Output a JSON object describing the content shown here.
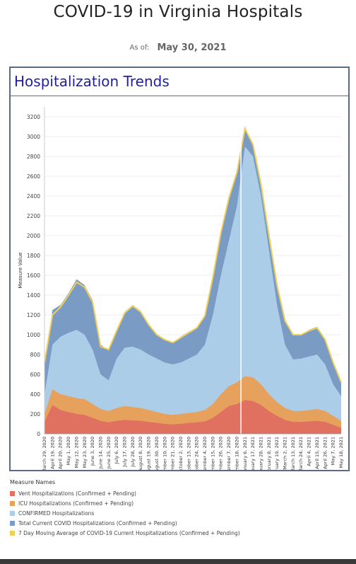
{
  "header": {
    "title": "COVID-19 in Virginia Hospitals",
    "as_of_label": "As of:",
    "as_of_date": "May 30, 2021"
  },
  "panel": {
    "title": "Hospitalization Trends"
  },
  "legend": {
    "title": "Measure Names",
    "items": [
      {
        "label": "Vent Hospitalizations (Confirmed + Pending)",
        "color": "#e07060"
      },
      {
        "label": "ICU Hospitalizations (Confirmed + Pending)",
        "color": "#e6a15c"
      },
      {
        "label": "CONFIRMED Hospitalizations",
        "color": "#abcde8"
      },
      {
        "label": "Total Current COVID Hospitalizations (Confirmed + Pending)",
        "color": "#7a9bc4"
      },
      {
        "label": "7 Day Moving Average of COVID-19 Current Hospitalizations (Confirmed + Pending)",
        "color": "#f0cf5a"
      }
    ]
  },
  "chart_data": {
    "type": "area",
    "ylabel": "Measure Value",
    "ylim": [
      0,
      3300
    ],
    "yticks": [
      0,
      200,
      400,
      600,
      800,
      1000,
      1200,
      1400,
      1600,
      1800,
      2000,
      2200,
      2400,
      2600,
      2800,
      3000,
      3200
    ],
    "x": [
      "March 29, 2020",
      "April 19, 2020",
      "April 20, 2020",
      "May 1, 2020",
      "May 12, 2020",
      "May 23, 2020",
      "June 3, 2020",
      "June 14, 2020",
      "June 25, 2020",
      "July 6, 2020",
      "July 17, 2020",
      "July 28, 2020",
      "August 8, 2020",
      "August 19, 2020",
      "August 30, 2020",
      "September 10, 2020",
      "September 21, 2020",
      "October 2, 2020",
      "October 13, 2020",
      "October 24, 2020",
      "November 4, 2020",
      "November 15, 2020",
      "November 26, 2020",
      "December 7, 2020",
      "December 18, 2020",
      "January 6, 2021",
      "January 17, 2021",
      "January 28, 2021",
      "February 8, 2021",
      "February 19, 2021",
      "March 2, 2021",
      "March 13, 2021",
      "March 24, 2021",
      "April 4, 2021",
      "April 15, 2021",
      "April 26, 2021",
      "May 7, 2021",
      "May 18, 2021"
    ],
    "x_ticks_shown": [
      "March 29, 2020",
      "April 19, 2020",
      "April 20, 2020",
      "May 1, 2020",
      "May 12, 2020",
      "May 23, 2020",
      "June 3, 2020",
      "June 14, 2020",
      "June 25, 2020",
      "July 6, 2020",
      "July 17, 2020",
      "July 28, 2020",
      "August 8, 2020",
      "August 19, 2020",
      "August 30, 2020",
      "September 10, 2020",
      "September 21, 2020",
      "October 2, 2020",
      "October 13, 2020",
      "October 24, 2020",
      "November 4, 2020",
      "November 15, 2020",
      "November 26, 2020",
      "December 7, 2020",
      "December 18, 2020",
      "January 6, 2021",
      "January 17, 2021",
      "January 28, 2021",
      "February 8, 2021",
      "February 19, 2021",
      "March 2, 2021",
      "March 13, 2021",
      "March 24, 2021",
      "April 4, 2021",
      "April 15, 2021",
      "April 26, 2021",
      "May 7, 2021",
      "May 18, 2021"
    ],
    "series": [
      {
        "name": "Total Current COVID Hospitalizations (Confirmed + Pending)",
        "values": [
          700,
          1250,
          1300,
          1420,
          1560,
          1500,
          1350,
          900,
          840,
          1050,
          1230,
          1300,
          1240,
          1100,
          1000,
          950,
          920,
          980,
          1030,
          1070,
          1200,
          1600,
          2050,
          2400,
          2650,
          3100,
          2900,
          2500,
          2000,
          1500,
          1150,
          1000,
          1000,
          1050,
          1080,
          950,
          700,
          520
        ]
      },
      {
        "name": "CONFIRMED Hospitalizations",
        "values": [
          400,
          900,
          980,
          1020,
          1050,
          1000,
          850,
          600,
          540,
          760,
          870,
          880,
          850,
          800,
          760,
          720,
          700,
          720,
          760,
          800,
          900,
          1200,
          1600,
          1950,
          2300,
          2900,
          2800,
          2400,
          1850,
          1300,
          900,
          750,
          760,
          780,
          800,
          700,
          500,
          380
        ]
      },
      {
        "name": "ICU Hospitalizations (Confirmed + Pending)",
        "values": [
          200,
          450,
          400,
          380,
          360,
          350,
          300,
          250,
          230,
          260,
          280,
          270,
          260,
          240,
          220,
          200,
          190,
          200,
          210,
          220,
          240,
          300,
          400,
          480,
          520,
          580,
          570,
          500,
          400,
          320,
          260,
          230,
          230,
          240,
          250,
          230,
          180,
          130
        ]
      },
      {
        "name": "Vent Hospitalizations (Confirmed + Pending)",
        "values": [
          120,
          290,
          240,
          220,
          200,
          190,
          160,
          130,
          115,
          130,
          140,
          135,
          130,
          120,
          110,
          100,
          95,
          100,
          110,
          115,
          125,
          160,
          220,
          280,
          300,
          340,
          330,
          290,
          230,
          180,
          140,
          120,
          120,
          125,
          130,
          120,
          90,
          60
        ]
      },
      {
        "name": "7 Day Moving Average of COVID-19 Current Hospitalizations (Confirmed + Pending)",
        "values": [
          720,
          1200,
          1280,
          1400,
          1530,
          1480,
          1330,
          880,
          850,
          1040,
          1220,
          1290,
          1230,
          1100,
          1000,
          950,
          920,
          970,
          1020,
          1070,
          1190,
          1580,
          2030,
          2380,
          2640,
          3080,
          2920,
          2520,
          2000,
          1500,
          1140,
          1000,
          1000,
          1040,
          1070,
          950,
          720,
          520
        ]
      }
    ]
  }
}
